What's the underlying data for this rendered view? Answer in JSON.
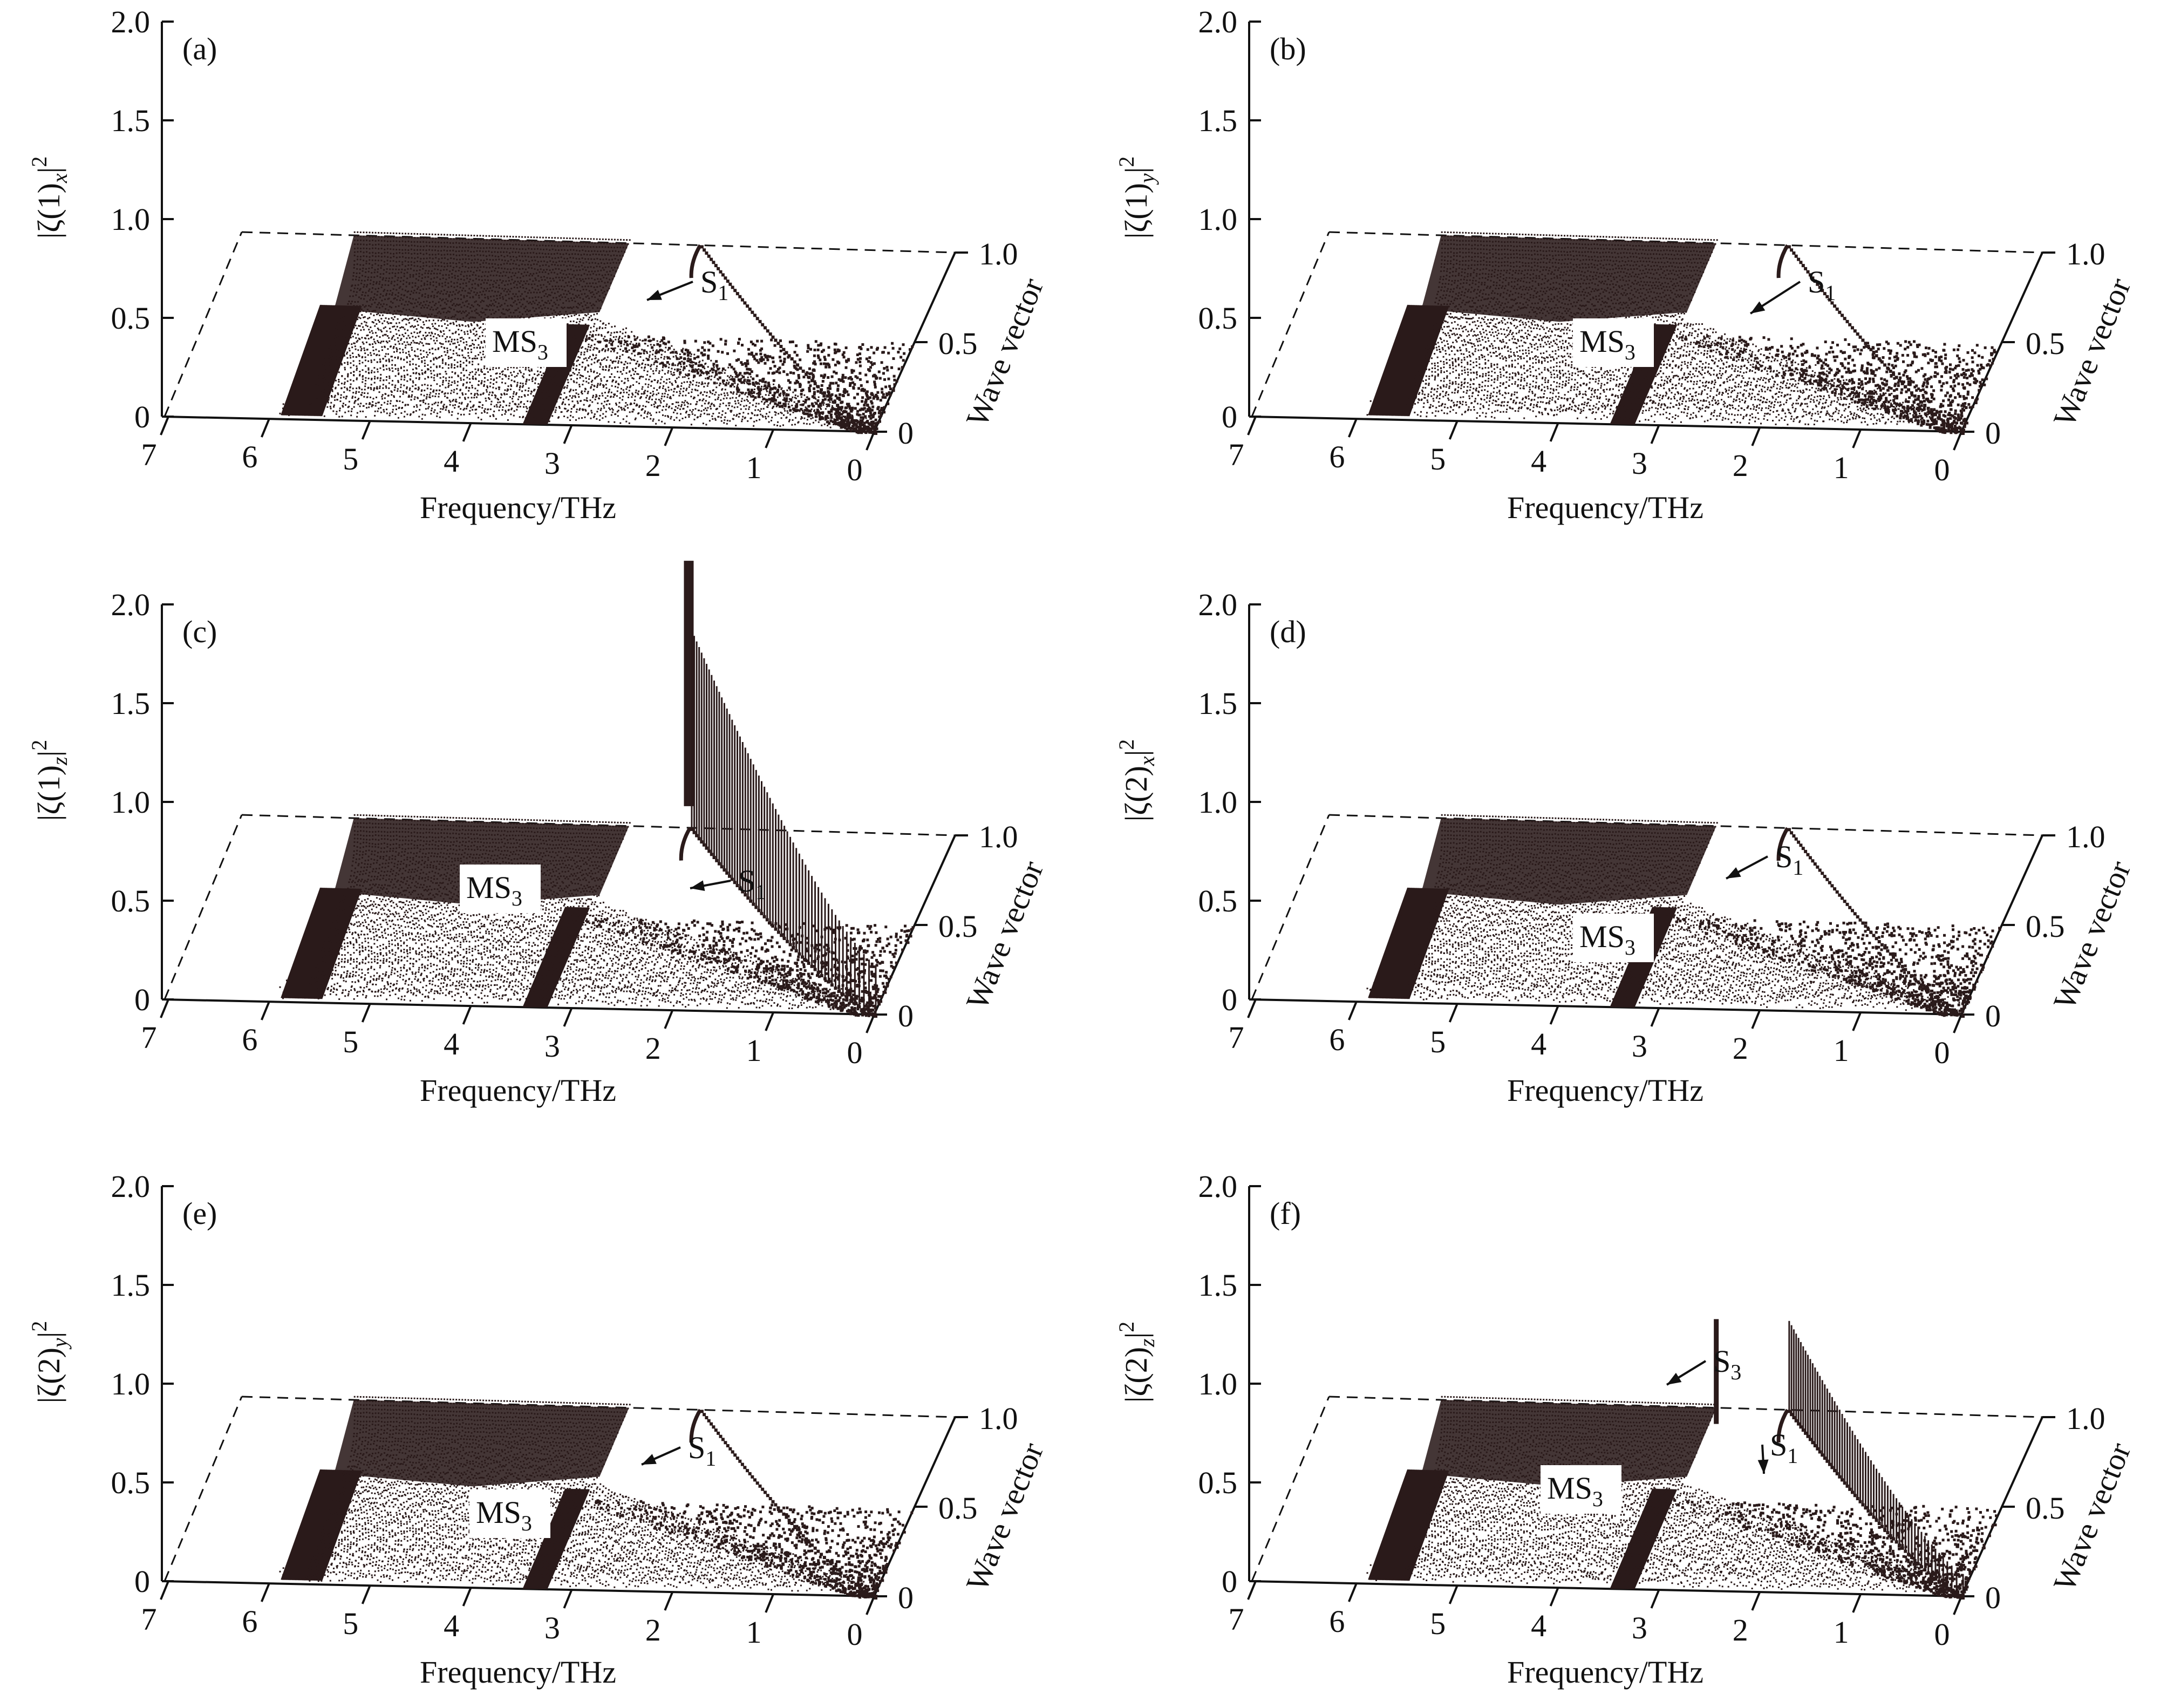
{
  "figure": {
    "colors": {
      "ink": "#2a1a1a",
      "axis": "#111111",
      "background": "#ffffff",
      "label_box": "#ffffff"
    }
  },
  "chart_data": [
    {
      "panel": "(a)",
      "type": "scatter",
      "view": "3d",
      "zlabel": "|ζ(1)x|2",
      "zlabel_parts": {
        "base": "|ζ(1)",
        "sub": "x",
        "tail": "|",
        "sup": "2"
      },
      "xlabel": "Frequency/THz",
      "ylabel": "Wave vector",
      "z_ticks": [
        "0",
        "0.5",
        "1.0",
        "1.5",
        "2.0"
      ],
      "x_ticks": [
        "7",
        "6",
        "5",
        "4",
        "3",
        "2",
        "1",
        "0"
      ],
      "y_ticks": [
        "0",
        "0.5",
        "1.0"
      ],
      "zlim": [
        0,
        2
      ],
      "xlim": [
        0,
        7
      ],
      "ylim": [
        0,
        1
      ],
      "band_region": {
        "freq_range": [
          3.2,
          5.9
        ],
        "max_value": 0.9
      },
      "s1_branch": {
        "freq_at_k0": 0,
        "freq_at_k1": 2.5,
        "value": 0.0
      },
      "annotations": [
        {
          "text": "MS",
          "sub": "3",
          "kind": "box"
        },
        {
          "text": "S",
          "sub": "1",
          "kind": "arrow"
        }
      ]
    },
    {
      "panel": "(b)",
      "type": "scatter",
      "view": "3d",
      "zlabel": "|ζ(1)y|2",
      "zlabel_parts": {
        "base": "|ζ(1)",
        "sub": "y",
        "tail": "|",
        "sup": "2"
      },
      "xlabel": "Frequency/THz",
      "ylabel": "Wave vector",
      "z_ticks": [
        "0",
        "0.5",
        "1.0",
        "1.5",
        "2.0"
      ],
      "x_ticks": [
        "7",
        "6",
        "5",
        "4",
        "3",
        "2",
        "1",
        "0"
      ],
      "y_ticks": [
        "0",
        "0.5",
        "1.0"
      ],
      "zlim": [
        0,
        2
      ],
      "xlim": [
        0,
        7
      ],
      "ylim": [
        0,
        1
      ],
      "band_region": {
        "freq_range": [
          3.2,
          5.9
        ],
        "max_value": 0.9
      },
      "s1_branch": {
        "freq_at_k0": 0,
        "freq_at_k1": 2.5,
        "value": 0.0
      },
      "annotations": [
        {
          "text": "MS",
          "sub": "3",
          "kind": "box"
        },
        {
          "text": "S",
          "sub": "1",
          "kind": "arrow"
        }
      ]
    },
    {
      "panel": "(c)",
      "type": "scatter",
      "view": "3d",
      "zlabel": "|ζ(1)z|2",
      "zlabel_parts": {
        "base": "|ζ(1)",
        "sub": "z",
        "tail": "|",
        "sup": "2"
      },
      "xlabel": "Frequency/THz",
      "ylabel": "Wave vector",
      "z_ticks": [
        "0",
        "0.5",
        "1.0",
        "1.5",
        "2.0"
      ],
      "x_ticks": [
        "7",
        "6",
        "5",
        "4",
        "3",
        "2",
        "1",
        "0"
      ],
      "y_ticks": [
        "0",
        "0.5",
        "1.0"
      ],
      "zlim": [
        0,
        2
      ],
      "xlim": [
        0,
        7
      ],
      "ylim": [
        0,
        1
      ],
      "band_region": {
        "freq_range": [
          3.2,
          5.9
        ],
        "max_value": 0.9
      },
      "s1_branch": {
        "freq_at_k0": 0,
        "freq_at_k1": 2.6,
        "value": 1.0,
        "peak_value": 1.42
      },
      "annotations": [
        {
          "text": "MS",
          "sub": "3",
          "kind": "box"
        },
        {
          "text": "S",
          "sub": "1",
          "kind": "arrow"
        }
      ]
    },
    {
      "panel": "(d)",
      "type": "scatter",
      "view": "3d",
      "zlabel": "|ζ(2)x|2",
      "zlabel_parts": {
        "base": "|ζ(2)",
        "sub": "x",
        "tail": "|",
        "sup": "2"
      },
      "xlabel": "Frequency/THz",
      "ylabel": "Wave vector",
      "z_ticks": [
        "0",
        "0.5",
        "1.0",
        "1.5",
        "2.0"
      ],
      "x_ticks": [
        "7",
        "6",
        "5",
        "4",
        "3",
        "2",
        "1",
        "0"
      ],
      "y_ticks": [
        "0",
        "0.5",
        "1.0"
      ],
      "zlim": [
        0,
        2
      ],
      "xlim": [
        0,
        7
      ],
      "ylim": [
        0,
        1
      ],
      "band_region": {
        "freq_range": [
          3.2,
          5.9
        ],
        "max_value": 0.9
      },
      "s1_branch": {
        "freq_at_k0": 0,
        "freq_at_k1": 2.5,
        "value": 0.0
      },
      "annotations": [
        {
          "text": "MS",
          "sub": "3",
          "kind": "box"
        },
        {
          "text": "S",
          "sub": "1",
          "kind": "arrow"
        }
      ]
    },
    {
      "panel": "(e)",
      "type": "scatter",
      "view": "3d",
      "zlabel": "|ζ(2)y|2",
      "zlabel_parts": {
        "base": "|ζ(2)",
        "sub": "y",
        "tail": "|",
        "sup": "2"
      },
      "xlabel": "Frequency/THz",
      "ylabel": "Wave vector",
      "z_ticks": [
        "0",
        "0.5",
        "1.0",
        "1.5",
        "2.0"
      ],
      "x_ticks": [
        "7",
        "6",
        "5",
        "4",
        "3",
        "2",
        "1",
        "0"
      ],
      "y_ticks": [
        "0",
        "0.5",
        "1.0"
      ],
      "zlim": [
        0,
        2
      ],
      "xlim": [
        0,
        7
      ],
      "ylim": [
        0,
        1
      ],
      "band_region": {
        "freq_range": [
          3.2,
          5.9
        ],
        "max_value": 0.9
      },
      "s1_branch": {
        "freq_at_k0": 0,
        "freq_at_k1": 2.5,
        "value": 0.0
      },
      "annotations": [
        {
          "text": "MS",
          "sub": "3",
          "kind": "box"
        },
        {
          "text": "S",
          "sub": "1",
          "kind": "arrow"
        }
      ]
    },
    {
      "panel": "(f)",
      "type": "scatter",
      "view": "3d",
      "zlabel": "|ζ(2)z|2",
      "zlabel_parts": {
        "base": "|ζ(2)",
        "sub": "z",
        "tail": "|",
        "sup": "2"
      },
      "xlabel": "Frequency/THz",
      "ylabel": "Wave vector",
      "z_ticks": [
        "0",
        "0.5",
        "1.0",
        "1.5",
        "2.0"
      ],
      "x_ticks": [
        "7",
        "6",
        "5",
        "4",
        "3",
        "2",
        "1",
        "0"
      ],
      "y_ticks": [
        "0",
        "0.5",
        "1.0"
      ],
      "zlim": [
        0,
        2
      ],
      "xlim": [
        0,
        7
      ],
      "ylim": [
        0,
        1
      ],
      "band_region": {
        "freq_range": [
          3.2,
          5.9
        ],
        "max_value": 0.9
      },
      "s1_branch": {
        "freq_at_k0": 0,
        "freq_at_k1": 2.5,
        "value": 0.45
      },
      "s3_peak": {
        "freq": 3.2,
        "value": 1.05
      },
      "annotations": [
        {
          "text": "MS",
          "sub": "3",
          "kind": "box"
        },
        {
          "text": "S",
          "sub": "1",
          "kind": "arrow"
        },
        {
          "text": "S",
          "sub": "3",
          "kind": "arrow"
        }
      ]
    }
  ]
}
